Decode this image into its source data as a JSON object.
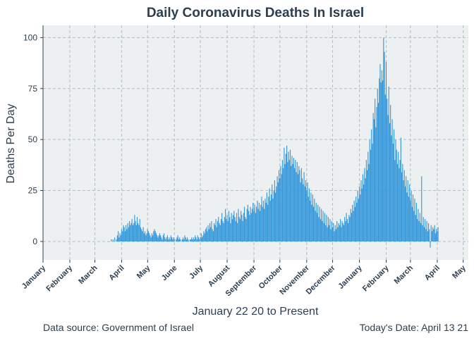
{
  "chart_data": {
    "type": "bar",
    "title": "Daily Coronavirus Deaths In Israel",
    "xlabel": "January 22 20 to Present",
    "ylabel": "Deaths Per Day",
    "caption_left": "Data source: Government of Israel",
    "caption_right": "Today's Date: April 13 21",
    "ylim": [
      -9,
      106
    ],
    "yticks": [
      0,
      25,
      50,
      75,
      100
    ],
    "xlim": [
      "2020-01-01",
      "2021-05-07"
    ],
    "xticks": [
      {
        "label": "January",
        "date": "2020-01-01"
      },
      {
        "label": "February",
        "date": "2020-02-01"
      },
      {
        "label": "March",
        "date": "2020-03-01"
      },
      {
        "label": "April",
        "date": "2020-04-01"
      },
      {
        "label": "May",
        "date": "2020-05-01"
      },
      {
        "label": "June",
        "date": "2020-06-01"
      },
      {
        "label": "July",
        "date": "2020-07-01"
      },
      {
        "label": "August",
        "date": "2020-08-01"
      },
      {
        "label": "September",
        "date": "2020-09-01"
      },
      {
        "label": "October",
        "date": "2020-10-01"
      },
      {
        "label": "November",
        "date": "2020-11-01"
      },
      {
        "label": "December",
        "date": "2020-12-01"
      },
      {
        "label": "January",
        "date": "2021-01-01"
      },
      {
        "label": "February",
        "date": "2021-02-01"
      },
      {
        "label": "March",
        "date": "2021-03-01"
      },
      {
        "label": "April",
        "date": "2021-04-01"
      },
      {
        "label": "May",
        "date": "2021-05-01"
      }
    ],
    "grid": true,
    "bar_color": "#3498db",
    "panel_color": "#ecf0f1",
    "text_color": "#2c3e50",
    "series": [
      {
        "start_date": "2020-03-20",
        "values": [
          1,
          0,
          1,
          0,
          2,
          0,
          1,
          3,
          5,
          2,
          4,
          3,
          6,
          5,
          8,
          7,
          5,
          8,
          6,
          9,
          7,
          10,
          8,
          9,
          11,
          8,
          9,
          13,
          10,
          8,
          12,
          9,
          8,
          11,
          7,
          6,
          5,
          7,
          4,
          5,
          3,
          4,
          6,
          5,
          4,
          3,
          2,
          4,
          3,
          5,
          6,
          5,
          4,
          3,
          2,
          3,
          4,
          3,
          2,
          1,
          3,
          4,
          2,
          1,
          2,
          3,
          1,
          2,
          1,
          3,
          2,
          1,
          2,
          1,
          0,
          1,
          2,
          3,
          1,
          2,
          1,
          0,
          1,
          2,
          1,
          3,
          2,
          1,
          2,
          1,
          0,
          1,
          1,
          2,
          1,
          2,
          1,
          3,
          2,
          1,
          3,
          2,
          1,
          2,
          4,
          2,
          3,
          5,
          4,
          6,
          7,
          5,
          8,
          6,
          9,
          7,
          10,
          6,
          5,
          9,
          8,
          11,
          7,
          10,
          12,
          9,
          8,
          11,
          14,
          10,
          9,
          12,
          16,
          11,
          13,
          10,
          15,
          12,
          9,
          14,
          11,
          13,
          15,
          12,
          10,
          14,
          9,
          16,
          12,
          11,
          15,
          13,
          10,
          14,
          17,
          12,
          11,
          16,
          18,
          15,
          13,
          17,
          14,
          16,
          19,
          15,
          18,
          14,
          17,
          20,
          16,
          19,
          15,
          18,
          22,
          17,
          20,
          16,
          21,
          19,
          24,
          18,
          22,
          26,
          20,
          23,
          28,
          21,
          25,
          30,
          24,
          27,
          32,
          29,
          35,
          31,
          37,
          33,
          40,
          36,
          46,
          38,
          43,
          47,
          39,
          44,
          40,
          45,
          37,
          42,
          38,
          41,
          36,
          40,
          34,
          39,
          33,
          37,
          35,
          29,
          36,
          31,
          28,
          34,
          27,
          30,
          25,
          29,
          22,
          26,
          20,
          24,
          18,
          23,
          17,
          21,
          15,
          19,
          14,
          18,
          12,
          17,
          11,
          16,
          10,
          15,
          9,
          14,
          8,
          13,
          7,
          12,
          8,
          11,
          6,
          10,
          7,
          9,
          5,
          8,
          6,
          10,
          7,
          9,
          8,
          11,
          7,
          10,
          9,
          8,
          12,
          10,
          14,
          11,
          9,
          13,
          12,
          16,
          14,
          18,
          15,
          20,
          17,
          22,
          19,
          25,
          21,
          27,
          23,
          30,
          26,
          33,
          28,
          36,
          31,
          40,
          35,
          44,
          38,
          50,
          45,
          55,
          48,
          63,
          60,
          70,
          56,
          66,
          75,
          68,
          80,
          87,
          78,
          84,
          79,
          100,
          93,
          72,
          88,
          70,
          62,
          76,
          58,
          67,
          52,
          60,
          48,
          55,
          40,
          50,
          45,
          38,
          44,
          36,
          40,
          51,
          34,
          38,
          30,
          35,
          27,
          32,
          24,
          30,
          22,
          28,
          20,
          25,
          17,
          23,
          15,
          21,
          13,
          19,
          11,
          16,
          10,
          14,
          9,
          32,
          8,
          12,
          7,
          11,
          6,
          10,
          5,
          9,
          6,
          -3,
          8,
          5,
          7,
          6,
          8,
          4,
          6,
          5,
          7
        ]
      }
    ]
  }
}
